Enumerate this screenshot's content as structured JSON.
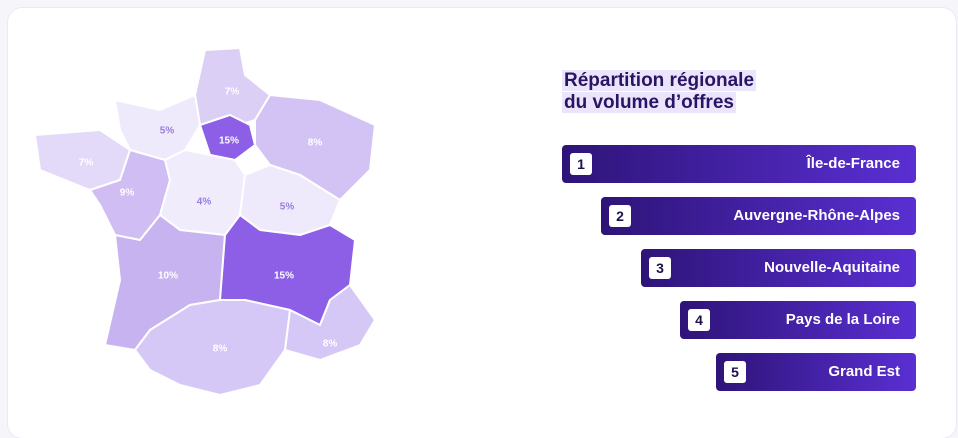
{
  "map": {
    "regions": [
      {
        "label": "7%"
      },
      {
        "label": "5%"
      },
      {
        "label": "15%"
      },
      {
        "label": "8%"
      },
      {
        "label": "7%"
      },
      {
        "label": "9%"
      },
      {
        "label": "4%"
      },
      {
        "label": "5%"
      },
      {
        "label": "10%"
      },
      {
        "label": "15%"
      },
      {
        "label": "8%"
      },
      {
        "label": "8%"
      }
    ]
  },
  "ranking": {
    "title": [
      "Répartition régionale",
      "du volume d’offres"
    ],
    "items": [
      {
        "rank": 1,
        "name": "Île-de-France"
      },
      {
        "rank": 2,
        "name": "Auvergne-Rhône-Alpes"
      },
      {
        "rank": 3,
        "name": "Nouvelle-Aquitaine"
      },
      {
        "rank": 4,
        "name": "Pays de la Loire"
      },
      {
        "rank": 5,
        "name": "Grand Est"
      }
    ]
  }
}
